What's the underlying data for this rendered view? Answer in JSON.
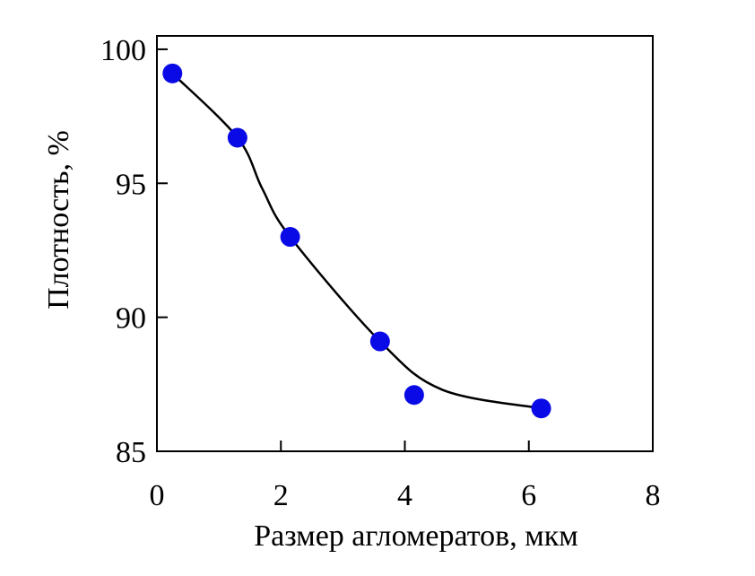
{
  "chart_data": {
    "type": "scatter",
    "xlabel": "Размер агломератов, мкм",
    "ylabel": "Плотность, %",
    "xlim": [
      0,
      8
    ],
    "ylim": [
      85,
      100.5
    ],
    "xticks": [
      0,
      2,
      4,
      6,
      8
    ],
    "yticks": [
      85,
      90,
      95,
      100
    ],
    "xtick_labels": [
      "0",
      "2",
      "4",
      "6",
      "8"
    ],
    "ytick_labels": [
      "85",
      "90",
      "95",
      "100"
    ],
    "grid": false,
    "legend": "none",
    "series": [
      {
        "points": [
          {
            "x": 0.25,
            "y": 99.1
          },
          {
            "x": 1.3,
            "y": 96.7
          },
          {
            "x": 2.15,
            "y": 93.0
          },
          {
            "x": 3.6,
            "y": 89.1
          },
          {
            "x": 4.15,
            "y": 87.1
          },
          {
            "x": 6.2,
            "y": 86.6
          }
        ]
      }
    ],
    "trend_line": {
      "x": [
        0.25,
        1.3,
        1.7,
        2.15,
        3.6,
        4.6,
        6.2
      ],
      "y": [
        99.1,
        96.7,
        94.8,
        93.0,
        89.1,
        87.3,
        86.6
      ]
    },
    "colors": {
      "marker": "#0a0ae6",
      "line": "#000000",
      "axes": "#000000"
    }
  }
}
